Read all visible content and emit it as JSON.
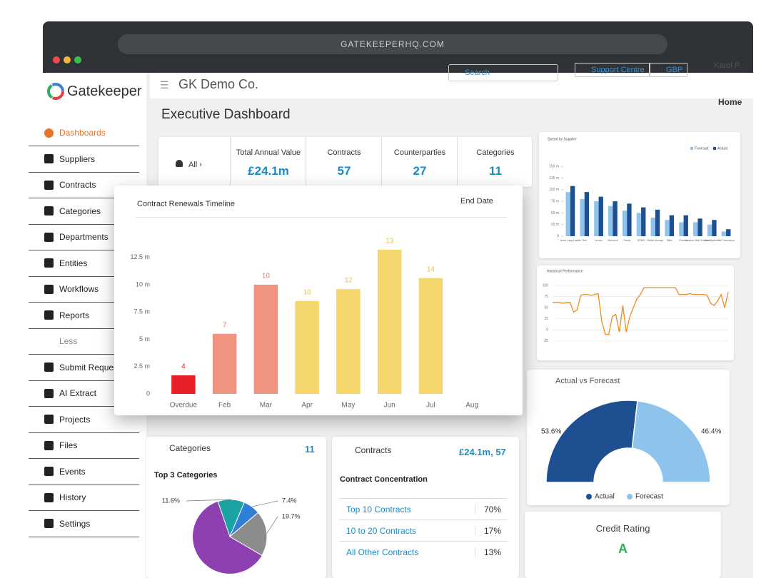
{
  "browser": {
    "url": "GATEKEEPERHQ.COM"
  },
  "logo": "Gatekeeper",
  "sidebar": [
    "Dashboards",
    "Suppliers",
    "Contracts",
    "Categories",
    "Departments",
    "Entities",
    "Workflows",
    "Reports",
    "Less",
    "Submit Requests",
    "AI Extract",
    "Projects",
    "Files",
    "Events",
    "History",
    "Settings"
  ],
  "topbar": {
    "company": "GK Demo Co.",
    "search": "Search",
    "support": "Support Centre",
    "currency": "GBP",
    "user": "Karol P"
  },
  "page": {
    "title": "Executive Dashboard",
    "breadcrumb": "Home"
  },
  "kpis": {
    "filter": "All",
    "items": [
      {
        "label": "Total Annual Value",
        "value": "£24.1m"
      },
      {
        "label": "Contracts",
        "value": "57"
      },
      {
        "label": "Counterparties",
        "value": "27"
      },
      {
        "label": "Categories",
        "value": "11"
      }
    ]
  },
  "categories_card": {
    "title": "Categories",
    "count": "11",
    "subtitle": "Top 3 Categories"
  },
  "contracts_card": {
    "title": "Contracts",
    "summary": "£24.1m, 57",
    "subtitle": "Contract Concentration",
    "rows": [
      [
        "Top 10 Contracts",
        "70%"
      ],
      [
        "10 to 20 Contracts",
        "17%"
      ],
      [
        "All Other Contracts",
        "13%"
      ]
    ]
  },
  "credit_card": {
    "title": "Credit Rating",
    "rating": "A"
  },
  "chart_data": [
    {
      "type": "bar",
      "title": "Contract Renewals Timeline",
      "control": "End Date",
      "categories": [
        "Overdue",
        "Feb",
        "Mar",
        "Apr",
        "May",
        "Jun",
        "Jul",
        "Aug"
      ],
      "values": [
        1.7,
        5.5,
        10,
        8.5,
        9.6,
        13.2,
        10.6,
        null
      ],
      "counts": [
        4,
        7,
        10,
        10,
        12,
        13,
        14,
        null
      ],
      "colors": [
        "#e8202a",
        "#ef9480",
        "#ef9480",
        "#f5d76e",
        "#f5d76e",
        "#f5d76e",
        "#f5d76e",
        null
      ],
      "ylim": [
        0,
        14.5
      ],
      "yticks": [
        0,
        {
          "value": 2.5,
          "label": "2.5 m"
        },
        {
          "value": 5,
          "label": "5 m"
        },
        {
          "value": 7.5,
          "label": "7.5 m"
        },
        {
          "value": 10,
          "label": "10 m"
        },
        {
          "value": 12.5,
          "label": "12.5 m"
        }
      ]
    },
    {
      "type": "grouped-bar",
      "title": "Spend by Supplier",
      "categories": [
        "Jones Lang Lasalle",
        "Dell",
        "Lenovo",
        "Microsoft",
        "Oracle",
        "KPMG",
        "British Airways",
        "Biffa",
        "Phoenix",
        "Houston Mott Solutions",
        "Intel Systems",
        "PwC Insurance"
      ],
      "series": [
        {
          "name": "Forecast",
          "color": "#8ec3ec",
          "values": [
            95,
            80,
            75,
            65,
            55,
            50,
            40,
            35,
            30,
            30,
            25,
            10
          ]
        },
        {
          "name": "Actual",
          "color": "#1d4f91",
          "values": [
            108,
            95,
            85,
            75,
            70,
            62,
            57,
            45,
            45,
            38,
            35,
            15
          ]
        }
      ],
      "ylim": [
        0,
        175
      ],
      "yticks": [
        0,
        {
          "value": 25,
          "label": "25 m"
        },
        {
          "value": 50,
          "label": "50 m"
        },
        {
          "value": 75,
          "label": "75 m"
        },
        {
          "value": 100,
          "label": "100 m"
        },
        {
          "value": 125,
          "label": "125 m"
        },
        {
          "value": 150,
          "label": "150 m"
        }
      ],
      "legend": "top-right"
    },
    {
      "type": "line",
      "title": "Historical Performance",
      "color": "#f08a24",
      "values": [
        62,
        62,
        62,
        60,
        62,
        62,
        40,
        45,
        78,
        80,
        80,
        78,
        80,
        82,
        20,
        -10,
        -10,
        30,
        35,
        -5,
        55,
        -5,
        30,
        50,
        70,
        80,
        95,
        95,
        95,
        95,
        95,
        95,
        95,
        95,
        95,
        95,
        80,
        80,
        80,
        82,
        80,
        80,
        80,
        80,
        78,
        60,
        55,
        65,
        80,
        50,
        85
      ],
      "ylim": [
        -35,
        110
      ],
      "yticks": [
        -25,
        0,
        25,
        50,
        75,
        100
      ],
      "grid": true
    },
    {
      "type": "half-donut",
      "title": "Actual vs Forecast",
      "categories": [
        "Actual",
        "Forecast"
      ],
      "values": [
        53.6,
        46.4
      ],
      "value_labels": [
        "53.6%",
        "46.4%"
      ],
      "colors": [
        "#1d4f91",
        "#8ec3ec"
      ]
    },
    {
      "type": "pie",
      "values": [
        11.6,
        7.4,
        19.7
      ],
      "value_labels": [
        "11.6%",
        "7.4%",
        "19.7%"
      ],
      "colors": [
        "#1aa3a3",
        "#2f7fd6",
        "#8c8c8c"
      ]
    }
  ]
}
